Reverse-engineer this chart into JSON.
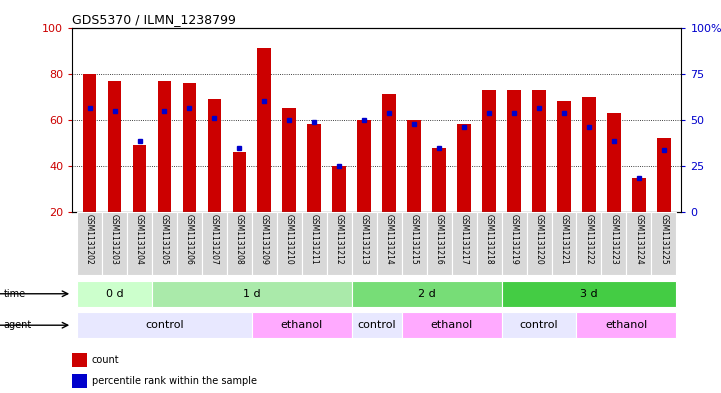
{
  "title": "GDS5370 / ILMN_1238799",
  "samples": [
    "GSM1131202",
    "GSM1131203",
    "GSM1131204",
    "GSM1131205",
    "GSM1131206",
    "GSM1131207",
    "GSM1131208",
    "GSM1131209",
    "GSM1131210",
    "GSM1131211",
    "GSM1131212",
    "GSM1131213",
    "GSM1131214",
    "GSM1131215",
    "GSM1131216",
    "GSM1131217",
    "GSM1131218",
    "GSM1131219",
    "GSM1131220",
    "GSM1131221",
    "GSM1131222",
    "GSM1131223",
    "GSM1131224",
    "GSM1131225"
  ],
  "red_values": [
    80,
    77,
    49,
    77,
    76,
    69,
    46,
    91,
    65,
    58,
    40,
    60,
    71,
    60,
    48,
    58,
    73,
    73,
    73,
    68,
    70,
    63,
    35,
    52
  ],
  "blue_values": [
    65,
    64,
    51,
    64,
    65,
    61,
    48,
    68,
    60,
    59,
    40,
    60,
    63,
    58,
    48,
    57,
    63,
    63,
    65,
    63,
    57,
    51,
    35,
    47
  ],
  "time_groups": [
    {
      "label": "0 d",
      "start": 0,
      "end": 3,
      "color": "#ccffcc"
    },
    {
      "label": "1 d",
      "start": 3,
      "end": 11,
      "color": "#aaeaaa"
    },
    {
      "label": "2 d",
      "start": 11,
      "end": 17,
      "color": "#77dd77"
    },
    {
      "label": "3 d",
      "start": 17,
      "end": 24,
      "color": "#44cc44"
    }
  ],
  "agent_groups": [
    {
      "label": "control",
      "start": 0,
      "end": 7,
      "color": "#e8e8ff"
    },
    {
      "label": "ethanol",
      "start": 7,
      "end": 11,
      "color": "#ffaaff"
    },
    {
      "label": "control",
      "start": 11,
      "end": 13,
      "color": "#e8e8ff"
    },
    {
      "label": "ethanol",
      "start": 13,
      "end": 17,
      "color": "#ffaaff"
    },
    {
      "label": "control",
      "start": 17,
      "end": 20,
      "color": "#e8e8ff"
    },
    {
      "label": "ethanol",
      "start": 20,
      "end": 24,
      "color": "#ffaaff"
    }
  ],
  "ylim": [
    20,
    100
  ],
  "yticks_left": [
    20,
    40,
    60,
    80,
    100
  ],
  "yticks_right": [
    0,
    25,
    50,
    75,
    100
  ],
  "red_color": "#cc0000",
  "blue_color": "#0000cc",
  "bar_width": 0.55
}
